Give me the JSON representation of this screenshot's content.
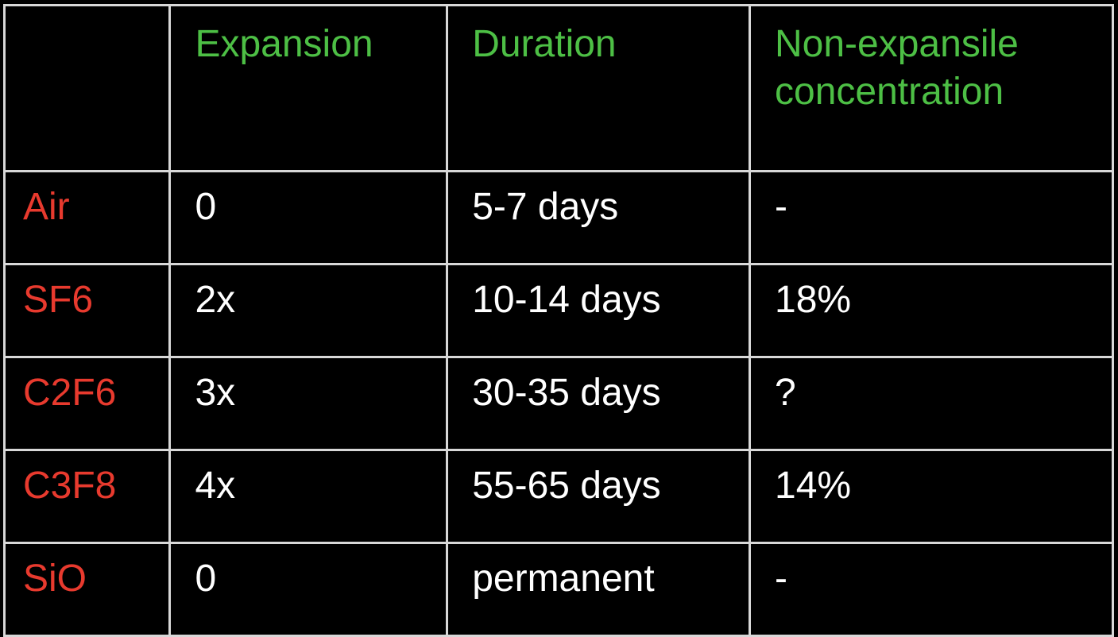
{
  "colors": {
    "background": "#000000",
    "header_text": "#4dbf45",
    "row_label_text": "#e83a2e",
    "cell_text": "#ffffff",
    "border": "#d8d8d8"
  },
  "table": {
    "headers": [
      "",
      "Expansion",
      "Duration",
      "Non-expansile concentration"
    ],
    "rows": [
      {
        "gas": "Air",
        "expansion": "0",
        "duration": "5-7 days",
        "concentration": "-"
      },
      {
        "gas": "SF6",
        "expansion": "2x",
        "duration": "10-14 days",
        "concentration": "18%"
      },
      {
        "gas": "C2F6",
        "expansion": "3x",
        "duration": "30-35 days",
        "concentration": "?"
      },
      {
        "gas": "C3F8",
        "expansion": "4x",
        "duration": "55-65 days",
        "concentration": "14%"
      },
      {
        "gas": "SiO",
        "expansion": "0",
        "duration": "permanent",
        "concentration": "-"
      }
    ]
  }
}
